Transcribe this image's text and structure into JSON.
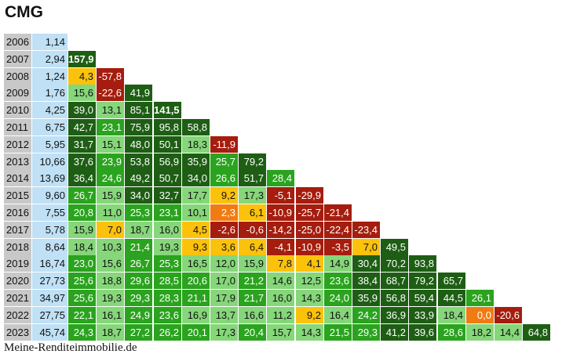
{
  "title": "CMG",
  "footer": "Meine-Renditeimmobilie.de",
  "colors": {
    "dark_green": "#1e5e14",
    "green": "#2aa31e",
    "light_green": "#86d67a",
    "yellow": "#fcc20b",
    "orange": "#f07b12",
    "red": "#a51d0e",
    "year_bg": "#c8c8c8",
    "price_bg": "#bfe0f5"
  },
  "chart_data": {
    "type": "table",
    "years": [
      "2006",
      "2007",
      "2008",
      "2009",
      "2010",
      "2011",
      "2012",
      "2013",
      "2014",
      "2015",
      "2016",
      "2017",
      "2018",
      "2019",
      "2020",
      "2021",
      "2022",
      "2023"
    ],
    "prices": [
      "1,14",
      "2,94",
      "1,24",
      "1,76",
      "4,25",
      "6,75",
      "5,95",
      "10,66",
      "13,69",
      "9,60",
      "7,55",
      "5,78",
      "8,64",
      "16,74",
      "27,73",
      "34,97",
      "27,75",
      "45,74"
    ],
    "returns": [
      [],
      [
        "157,9"
      ],
      [
        "4,3",
        "-57,8"
      ],
      [
        "15,6",
        "-22,6",
        "41,9"
      ],
      [
        "39,0",
        "13,1",
        "85,1",
        "141,5"
      ],
      [
        "42,7",
        "23,1",
        "75,9",
        "95,8",
        "58,8"
      ],
      [
        "31,7",
        "15,1",
        "48,0",
        "50,1",
        "18,3",
        "-11,9"
      ],
      [
        "37,6",
        "23,9",
        "53,8",
        "56,9",
        "35,9",
        "25,7",
        "79,2"
      ],
      [
        "36,4",
        "24,6",
        "49,2",
        "50,7",
        "34,0",
        "26,6",
        "51,7",
        "28,4"
      ],
      [
        "26,7",
        "15,9",
        "34,0",
        "32,7",
        "17,7",
        "9,2",
        "17,3",
        "-5,1",
        "-29,9"
      ],
      [
        "20,8",
        "11,0",
        "25,3",
        "23,1",
        "10,1",
        "2,3",
        "6,1",
        "-10,9",
        "-25,7",
        "-21,4"
      ],
      [
        "15,9",
        "7,0",
        "18,7",
        "16,0",
        "4,5",
        "-2,6",
        "-0,6",
        "-14,2",
        "-25,0",
        "-22,4",
        "-23,4"
      ],
      [
        "18,4",
        "10,3",
        "21,4",
        "19,3",
        "9,3",
        "3,6",
        "6,4",
        "-4,1",
        "-10,9",
        "-3,5",
        "7,0",
        "49,5"
      ],
      [
        "23,0",
        "15,6",
        "26,7",
        "25,3",
        "16,5",
        "12,0",
        "15,9",
        "7,8",
        "4,1",
        "14,9",
        "30,4",
        "70,2",
        "93,8"
      ],
      [
        "25,6",
        "18,8",
        "29,6",
        "28,5",
        "20,6",
        "17,0",
        "21,2",
        "14,6",
        "12,5",
        "23,6",
        "38,4",
        "68,7",
        "79,2",
        "65,7"
      ],
      [
        "25,6",
        "19,3",
        "29,3",
        "28,3",
        "21,1",
        "17,9",
        "21,7",
        "16,0",
        "14,3",
        "24,0",
        "35,9",
        "56,8",
        "59,4",
        "44,5",
        "26,1"
      ],
      [
        "22,1",
        "16,1",
        "24,9",
        "23,6",
        "16,9",
        "13,7",
        "16,6",
        "11,2",
        "9,2",
        "16,4",
        "24,2",
        "36,9",
        "33,9",
        "18,4",
        "0,0",
        "-20,6"
      ],
      [
        "24,3",
        "18,7",
        "27,2",
        "26,2",
        "20,1",
        "17,3",
        "20,4",
        "15,7",
        "14,3",
        "21,5",
        "29,3",
        "41,2",
        "39,6",
        "28,6",
        "18,2",
        "14,4",
        "64,8"
      ]
    ]
  }
}
